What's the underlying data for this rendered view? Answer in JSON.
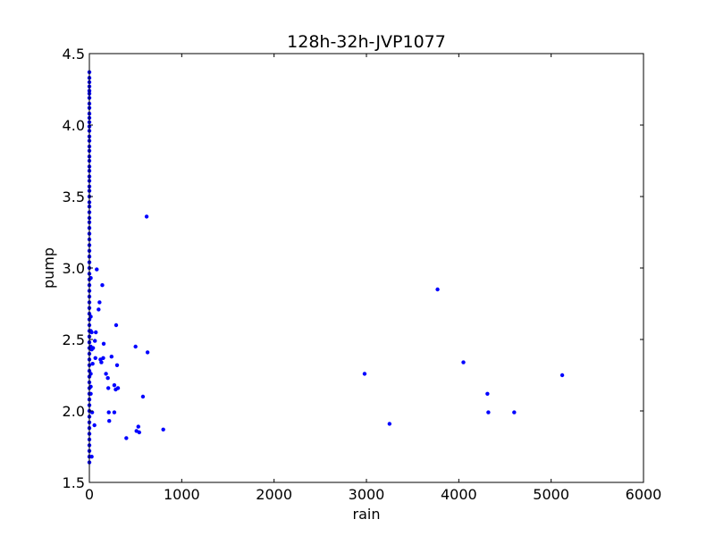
{
  "chart_data": {
    "type": "scatter",
    "title": "128h-32h-JVP1077",
    "xlabel": "rain",
    "ylabel": "pump",
    "xlim": [
      0,
      6000
    ],
    "ylim": [
      1.5,
      4.5
    ],
    "xticks": [
      "0",
      "1000",
      "2000",
      "3000",
      "4000",
      "5000",
      "6000"
    ],
    "yticks": [
      "1.5",
      "2.0",
      "2.5",
      "3.0",
      "3.5",
      "4.0",
      "4.5"
    ],
    "grid": false,
    "legend": "none",
    "marker_color": "#0000ff",
    "series": [
      {
        "points": [
          [
            0,
            4.37
          ],
          [
            0,
            4.33
          ],
          [
            0,
            4.3
          ],
          [
            0,
            4.27
          ],
          [
            0,
            4.24
          ],
          [
            0,
            4.22
          ],
          [
            0,
            4.19
          ],
          [
            0,
            4.15
          ],
          [
            0,
            4.12
          ],
          [
            0,
            4.08
          ],
          [
            0,
            4.05
          ],
          [
            0,
            4.02
          ],
          [
            0,
            3.99
          ],
          [
            0,
            3.96
          ],
          [
            0,
            3.92
          ],
          [
            0,
            3.89
          ],
          [
            0,
            3.85
          ],
          [
            0,
            3.82
          ],
          [
            0,
            3.78
          ],
          [
            0,
            3.75
          ],
          [
            0,
            3.71
          ],
          [
            0,
            3.68
          ],
          [
            0,
            3.64
          ],
          [
            0,
            3.61
          ],
          [
            0,
            3.57
          ],
          [
            0,
            3.54
          ],
          [
            0,
            3.5
          ],
          [
            0,
            3.46
          ],
          [
            0,
            3.43
          ],
          [
            0,
            3.39
          ],
          [
            0,
            3.35
          ],
          [
            0,
            3.32
          ],
          [
            0,
            3.28
          ],
          [
            0,
            3.24
          ],
          [
            0,
            3.2
          ],
          [
            0,
            3.16
          ],
          [
            0,
            3.12
          ],
          [
            0,
            3.08
          ],
          [
            0,
            3.04
          ],
          [
            0,
            3.0
          ],
          [
            0,
            2.96
          ],
          [
            0,
            2.92
          ],
          [
            0,
            2.88
          ],
          [
            0,
            2.84
          ],
          [
            0,
            2.8
          ],
          [
            0,
            2.76
          ],
          [
            0,
            2.72
          ],
          [
            0,
            2.68
          ],
          [
            0,
            2.64
          ],
          [
            0,
            2.6
          ],
          [
            0,
            2.56
          ],
          [
            0,
            2.52
          ],
          [
            0,
            2.48
          ],
          [
            0,
            2.44
          ],
          [
            0,
            2.4
          ],
          [
            0,
            2.36
          ],
          [
            0,
            2.32
          ],
          [
            0,
            2.28
          ],
          [
            0,
            2.24
          ],
          [
            0,
            2.2
          ],
          [
            0,
            2.16
          ],
          [
            0,
            2.12
          ],
          [
            0,
            2.08
          ],
          [
            0,
            2.04
          ],
          [
            0,
            2.0
          ],
          [
            0,
            1.96
          ],
          [
            0,
            1.92
          ],
          [
            0,
            1.88
          ],
          [
            0,
            1.84
          ],
          [
            0,
            1.8
          ],
          [
            0,
            1.76
          ],
          [
            0,
            1.72
          ],
          [
            0,
            1.68
          ],
          [
            0,
            1.64
          ],
          [
            15,
            2.93
          ],
          [
            15,
            2.66
          ],
          [
            15,
            2.56
          ],
          [
            15,
            2.45
          ],
          [
            15,
            2.26
          ],
          [
            15,
            2.17
          ],
          [
            15,
            2.12
          ],
          [
            25,
            1.68
          ],
          [
            25,
            2.55
          ],
          [
            25,
            2.43
          ],
          [
            30,
            1.99
          ],
          [
            35,
            2.33
          ],
          [
            40,
            2.44
          ],
          [
            55,
            1.9
          ],
          [
            60,
            2.49
          ],
          [
            65,
            2.37
          ],
          [
            70,
            2.55
          ],
          [
            80,
            2.99
          ],
          [
            100,
            2.71
          ],
          [
            110,
            2.76
          ],
          [
            120,
            2.36
          ],
          [
            130,
            2.34
          ],
          [
            140,
            2.88
          ],
          [
            150,
            2.37
          ],
          [
            155,
            2.47
          ],
          [
            180,
            2.26
          ],
          [
            200,
            2.23
          ],
          [
            205,
            2.16
          ],
          [
            210,
            1.99
          ],
          [
            215,
            1.93
          ],
          [
            240,
            2.38
          ],
          [
            270,
            2.18
          ],
          [
            270,
            1.99
          ],
          [
            285,
            2.15
          ],
          [
            290,
            2.6
          ],
          [
            300,
            2.32
          ],
          [
            310,
            2.16
          ],
          [
            400,
            1.81
          ],
          [
            500,
            2.45
          ],
          [
            510,
            1.86
          ],
          [
            530,
            1.89
          ],
          [
            540,
            1.85
          ],
          [
            580,
            2.1
          ],
          [
            620,
            3.36
          ],
          [
            630,
            2.41
          ],
          [
            800,
            1.87
          ],
          [
            2980,
            2.26
          ],
          [
            3250,
            1.91
          ],
          [
            3770,
            2.85
          ],
          [
            4050,
            2.34
          ],
          [
            4310,
            2.12
          ],
          [
            4320,
            1.99
          ],
          [
            4600,
            1.99
          ],
          [
            5120,
            2.25
          ]
        ]
      }
    ]
  }
}
